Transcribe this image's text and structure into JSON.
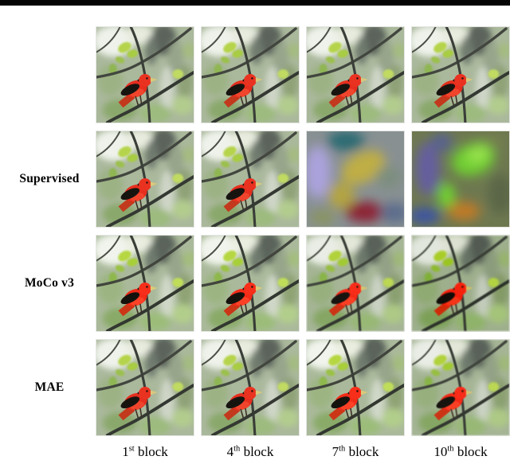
{
  "figure": {
    "rows": [
      {
        "label": "",
        "cells": [
          {
            "image": "bird",
            "variant": "clean"
          },
          {
            "image": "bird",
            "variant": "clean"
          },
          {
            "image": "bird",
            "variant": "clean"
          },
          {
            "image": "bird",
            "variant": "clean"
          }
        ]
      },
      {
        "label": "Supervised",
        "cells": [
          {
            "image": "bird",
            "variant": "clean"
          },
          {
            "image": "bird",
            "variant": "clean"
          },
          {
            "image": "abstract7",
            "variant": "clean"
          },
          {
            "image": "abstract10",
            "variant": "clean"
          }
        ]
      },
      {
        "label": "MoCo v3",
        "cells": [
          {
            "image": "bird",
            "variant": "sat"
          },
          {
            "image": "bird",
            "variant": "sat"
          },
          {
            "image": "bird",
            "variant": "soft"
          },
          {
            "image": "bird",
            "variant": "deg"
          }
        ]
      },
      {
        "label": "MAE",
        "cells": [
          {
            "image": "bird",
            "variant": "clean"
          },
          {
            "image": "bird",
            "variant": "clean"
          },
          {
            "image": "bird",
            "variant": "sat"
          },
          {
            "image": "bird",
            "variant": "soft"
          }
        ]
      }
    ],
    "columns": [
      {
        "ordinal": "1",
        "suffix": "st",
        "word": "block"
      },
      {
        "ordinal": "4",
        "suffix": "th",
        "word": "block"
      },
      {
        "ordinal": "7",
        "suffix": "th",
        "word": "block"
      },
      {
        "ordinal": "10",
        "suffix": "th",
        "word": "block"
      }
    ]
  },
  "colors": {
    "rule": "#050505",
    "bird_red": "#e62e1e",
    "scene_background": "#aab89c",
    "abstract7_palette": [
      "#aaa2dc",
      "#2c6a72",
      "#bfae44",
      "#8c2034",
      "#5c6c8c",
      "#889092"
    ],
    "abstract10_palette": [
      "#6fce33",
      "#655e9e",
      "#c07a28",
      "#3c55a2",
      "#6e7850"
    ]
  }
}
